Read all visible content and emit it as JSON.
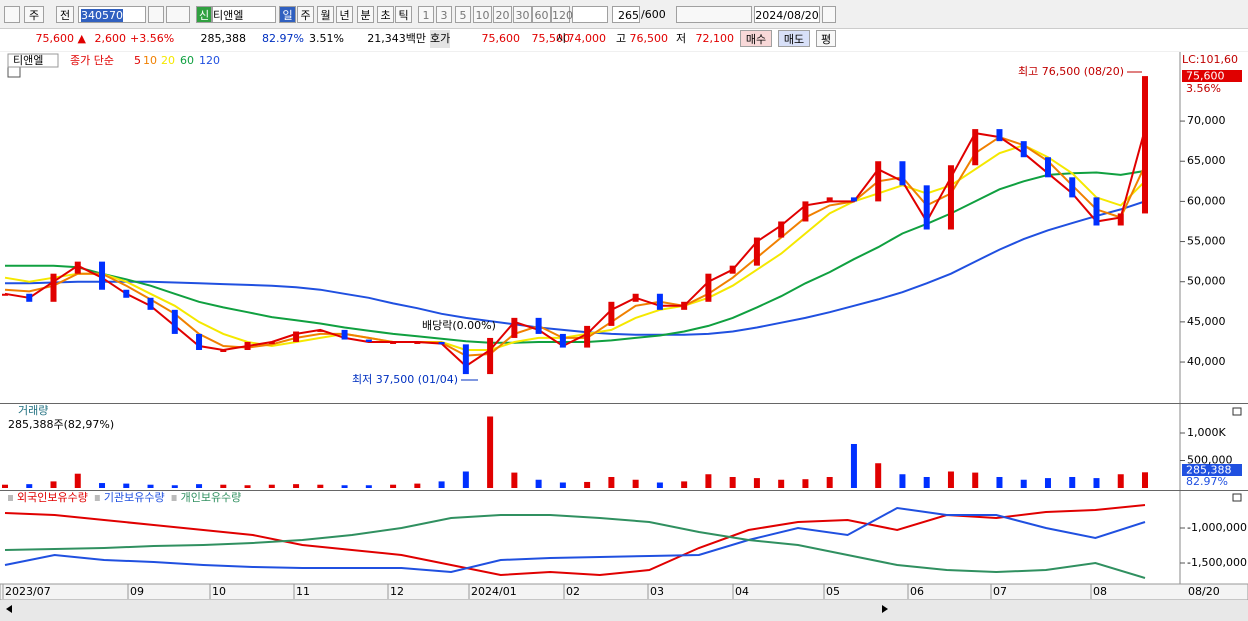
{
  "toolbar": {
    "market": "주",
    "prev": "전",
    "code": "340570",
    "name": "티앤엘",
    "badge": "신",
    "periods": [
      "일",
      "주",
      "월",
      "년",
      "분",
      "초",
      "틱"
    ],
    "intervals": [
      "1",
      "3",
      "5",
      "10",
      "20",
      "30",
      "60",
      "120"
    ],
    "count": "265",
    "count_max": "/600",
    "date": "2024/08/20"
  },
  "quote": {
    "price": "75,600 ▲",
    "change": "2,600",
    "change_pct": "+3.56%",
    "volume": "285,388",
    "volume_ratio": "82.97%",
    "turnover": "3.51%",
    "amount": "21,343백만",
    "ask_label": "호가",
    "ask": "75,600",
    "bid": "75,500",
    "open_label": "시",
    "open": "74,000",
    "high_label": "고",
    "high": "76,500",
    "low_label": "저",
    "low": "72,100",
    "buy": "매수",
    "sell": "매도",
    "avg": "평"
  },
  "chart_data": [
    {
      "type": "candle",
      "title": "티앤엘",
      "subtitle": "종가 단순",
      "up_color": "#e00000",
      "down_color": "#0030ff",
      "values": [
        48500,
        47500,
        51000,
        52500,
        49000,
        48000,
        46500,
        43500,
        41500,
        41500,
        42500,
        42500,
        43800,
        44000,
        42800,
        42500,
        42500,
        42500,
        42200,
        38500,
        43000,
        45500,
        43500,
        41800,
        44500,
        47500,
        48500,
        46500,
        47500,
        51000,
        52000,
        55500,
        57500,
        60000,
        60500,
        60000,
        65000,
        62000,
        56500,
        64500,
        69000,
        67500,
        65500,
        63000,
        60500,
        57000,
        58500,
        75600
      ],
      "series": [
        {
          "name": "5",
          "color": "#e00000",
          "values": [
            48500,
            48000,
            50000,
            52000,
            50500,
            48500,
            47000,
            44500,
            42000,
            41500,
            42000,
            42500,
            43500,
            44000,
            43000,
            42500,
            42500,
            42500,
            42300,
            39500,
            41500,
            45000,
            44000,
            42000,
            43500,
            46500,
            48000,
            47000,
            47000,
            50000,
            51500,
            55000,
            57000,
            59500,
            60000,
            60000,
            64000,
            62500,
            57500,
            63000,
            68500,
            68000,
            66000,
            63500,
            61000,
            57500,
            58000,
            69000
          ]
        },
        {
          "name": "10",
          "color": "#f08000",
          "values": [
            49000,
            48800,
            49500,
            51000,
            51000,
            49500,
            47800,
            46000,
            43500,
            42000,
            41800,
            42200,
            43000,
            43500,
            43500,
            43000,
            42500,
            42500,
            42400,
            40800,
            41000,
            43500,
            44500,
            43000,
            43000,
            45000,
            47000,
            47500,
            47000,
            48500,
            50500,
            53000,
            55500,
            58000,
            59500,
            60000,
            62500,
            63000,
            59500,
            61000,
            66000,
            68000,
            67000,
            65000,
            62000,
            59000,
            58000,
            64500
          ]
        },
        {
          "name": "20",
          "color": "#f5e800",
          "values": [
            50500,
            50000,
            50500,
            51000,
            51000,
            50000,
            48500,
            47000,
            45000,
            43500,
            42500,
            42000,
            42500,
            43000,
            43500,
            43000,
            42500,
            42500,
            42500,
            41500,
            41500,
            42500,
            43000,
            43000,
            43500,
            44000,
            45500,
            46500,
            47000,
            48000,
            49500,
            51500,
            53500,
            56000,
            58500,
            60000,
            61000,
            62000,
            61000,
            62000,
            64000,
            66000,
            67000,
            65500,
            63500,
            60500,
            59500,
            62500
          ]
        },
        {
          "name": "60",
          "color": "#10a040",
          "values": [
            52000,
            52000,
            52000,
            51800,
            51000,
            50300,
            49500,
            48500,
            47500,
            46800,
            46200,
            45600,
            45200,
            44800,
            44300,
            43900,
            43500,
            43200,
            42900,
            42600,
            42400,
            42400,
            42500,
            42500,
            42500,
            42700,
            43000,
            43300,
            43800,
            44500,
            45500,
            46800,
            48200,
            49800,
            51200,
            52800,
            54300,
            56000,
            57200,
            58500,
            60000,
            61500,
            62500,
            63300,
            63500,
            63600,
            63300,
            63800
          ]
        },
        {
          "name": "120",
          "color": "#2050e0",
          "values": [
            49800,
            49800,
            49900,
            50000,
            50000,
            50000,
            50000,
            49900,
            49800,
            49700,
            49600,
            49500,
            49300,
            49000,
            48500,
            48000,
            47300,
            46700,
            46000,
            45500,
            45100,
            44700,
            44300,
            44000,
            43700,
            43500,
            43400,
            43400,
            43400,
            43500,
            43800,
            44300,
            44900,
            45500,
            46200,
            47000,
            47800,
            48700,
            49800,
            51000,
            52500,
            54000,
            55300,
            56400,
            57300,
            58200,
            59000,
            60000
          ]
        }
      ],
      "ylim": [
        34900,
        78600
      ],
      "yticks": [
        {
          "value": 40000,
          "label": "40,000"
        },
        {
          "value": 45000,
          "label": "45,000"
        },
        {
          "value": 50000,
          "label": "50,000"
        },
        {
          "value": 55000,
          "label": "55,000"
        },
        {
          "value": 60000,
          "label": "60,000"
        },
        {
          "value": 65000,
          "label": "65,000"
        },
        {
          "value": 70000,
          "label": "70,000"
        }
      ],
      "top_label": "LC:101,60",
      "last_value_label": "75,600",
      "last_change_label": "3.56%",
      "annotations": [
        "최고 76,500 (08/20)",
        "최저 37,500 (01/04)",
        "배당락(0.00%)"
      ]
    },
    {
      "type": "bar",
      "title": "거래량",
      "subtitle": "285,388주(82,97%)",
      "up_color": "#e00000",
      "down_color": "#0030ff",
      "values": [
        60000,
        70000,
        120000,
        260000,
        90000,
        80000,
        60000,
        50000,
        70000,
        60000,
        50000,
        60000,
        70000,
        60000,
        50000,
        50000,
        60000,
        80000,
        120000,
        300000,
        1300000,
        280000,
        150000,
        100000,
        110000,
        200000,
        150000,
        100000,
        120000,
        250000,
        200000,
        180000,
        150000,
        160000,
        200000,
        800000,
        450000,
        250000,
        200000,
        300000,
        280000,
        200000,
        150000,
        180000,
        200000,
        180000,
        250000,
        285388
      ],
      "ylim": [
        0,
        1527000
      ],
      "yticks": [
        {
          "value": 500000,
          "label": "500,000"
        },
        {
          "value": 1000000,
          "label": "1,000K"
        }
      ],
      "last_value_label": "285,388",
      "last_ratio_label": "82.97%"
    },
    {
      "type": "line",
      "series": [
        {
          "name": "외국인보유수량",
          "color": "#e00000",
          "values": [
            -786000,
            -814000,
            -886000,
            -957000,
            -1029000,
            -1100000,
            -1243000,
            -1314000,
            -1386000,
            -1529000,
            -1671000,
            -1629000,
            -1671000,
            -1600000,
            -1286000,
            -1029000,
            -914000,
            -886000,
            -1029000,
            -814000,
            -857000,
            -771000,
            -743000,
            -671000
          ]
        },
        {
          "name": "기관보유수량",
          "color": "#2050e0",
          "values": [
            -1529000,
            -1386000,
            -1457000,
            -1486000,
            -1529000,
            -1557000,
            -1571000,
            -1571000,
            -1571000,
            -1629000,
            -1457000,
            -1429000,
            -1414000,
            -1400000,
            -1386000,
            -1171000,
            -1000000,
            -1100000,
            -714000,
            -814000,
            -814000,
            -1000000,
            -1143000,
            -914000
          ]
        },
        {
          "name": "개인보유수량",
          "color": "#309060",
          "values": [
            -1314000,
            -1300000,
            -1286000,
            -1257000,
            -1243000,
            -1214000,
            -1171000,
            -1100000,
            -1000000,
            -857000,
            -814000,
            -814000,
            -857000,
            -914000,
            -1057000,
            -1171000,
            -1243000,
            -1386000,
            -1529000,
            -1600000,
            -1629000,
            -1600000,
            -1500000,
            -1714000
          ]
        }
      ],
      "ylim": [
        -1786000,
        -471000
      ],
      "yticks": [
        {
          "value": -1500000,
          "label": "-1,500,000"
        },
        {
          "value": -1000000,
          "label": "-1,000,000"
        }
      ]
    }
  ],
  "x_axis": {
    "labels": [
      "2023/07",
      "09",
      "10",
      "11",
      "12",
      "2024/01",
      "02",
      "03",
      "04",
      "05",
      "06",
      "07",
      "08"
    ],
    "end_label": "08/20"
  }
}
